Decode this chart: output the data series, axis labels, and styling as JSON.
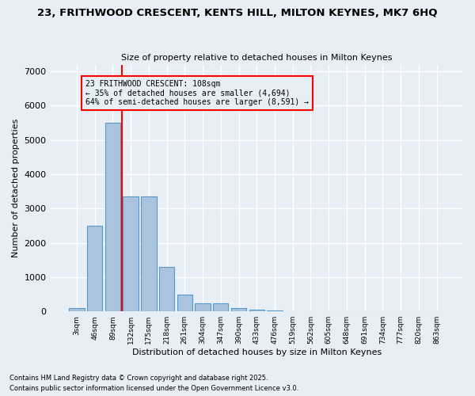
{
  "title_line1": "23, FRITHWOOD CRESCENT, KENTS HILL, MILTON KEYNES, MK7 6HQ",
  "title_line2": "Size of property relative to detached houses in Milton Keynes",
  "xlabel": "Distribution of detached houses by size in Milton Keynes",
  "ylabel": "Number of detached properties",
  "categories": [
    "3sqm",
    "46sqm",
    "89sqm",
    "132sqm",
    "175sqm",
    "218sqm",
    "261sqm",
    "304sqm",
    "347sqm",
    "390sqm",
    "433sqm",
    "476sqm",
    "519sqm",
    "562sqm",
    "605sqm",
    "648sqm",
    "691sqm",
    "734sqm",
    "777sqm",
    "820sqm",
    "863sqm"
  ],
  "values": [
    100,
    2500,
    5500,
    3350,
    3350,
    1300,
    500,
    230,
    230,
    100,
    60,
    30,
    0,
    0,
    0,
    0,
    0,
    0,
    0,
    0,
    0
  ],
  "bar_color": "#aac4dd",
  "bar_edge_color": "#5599cc",
  "vline_x_idx": 2,
  "vline_color": "red",
  "annotation_text": "23 FRITHWOOD CRESCENT: 108sqm\n← 35% of detached houses are smaller (4,694)\n64% of semi-detached houses are larger (8,591) →",
  "box_color": "red",
  "ylim": [
    0,
    7200
  ],
  "yticks": [
    0,
    1000,
    2000,
    3000,
    4000,
    5000,
    6000,
    7000
  ],
  "background_color": "#e8eef5",
  "grid_color": "#ffffff",
  "footer_line1": "Contains HM Land Registry data © Crown copyright and database right 2025.",
  "footer_line2": "Contains public sector information licensed under the Open Government Licence v3.0."
}
